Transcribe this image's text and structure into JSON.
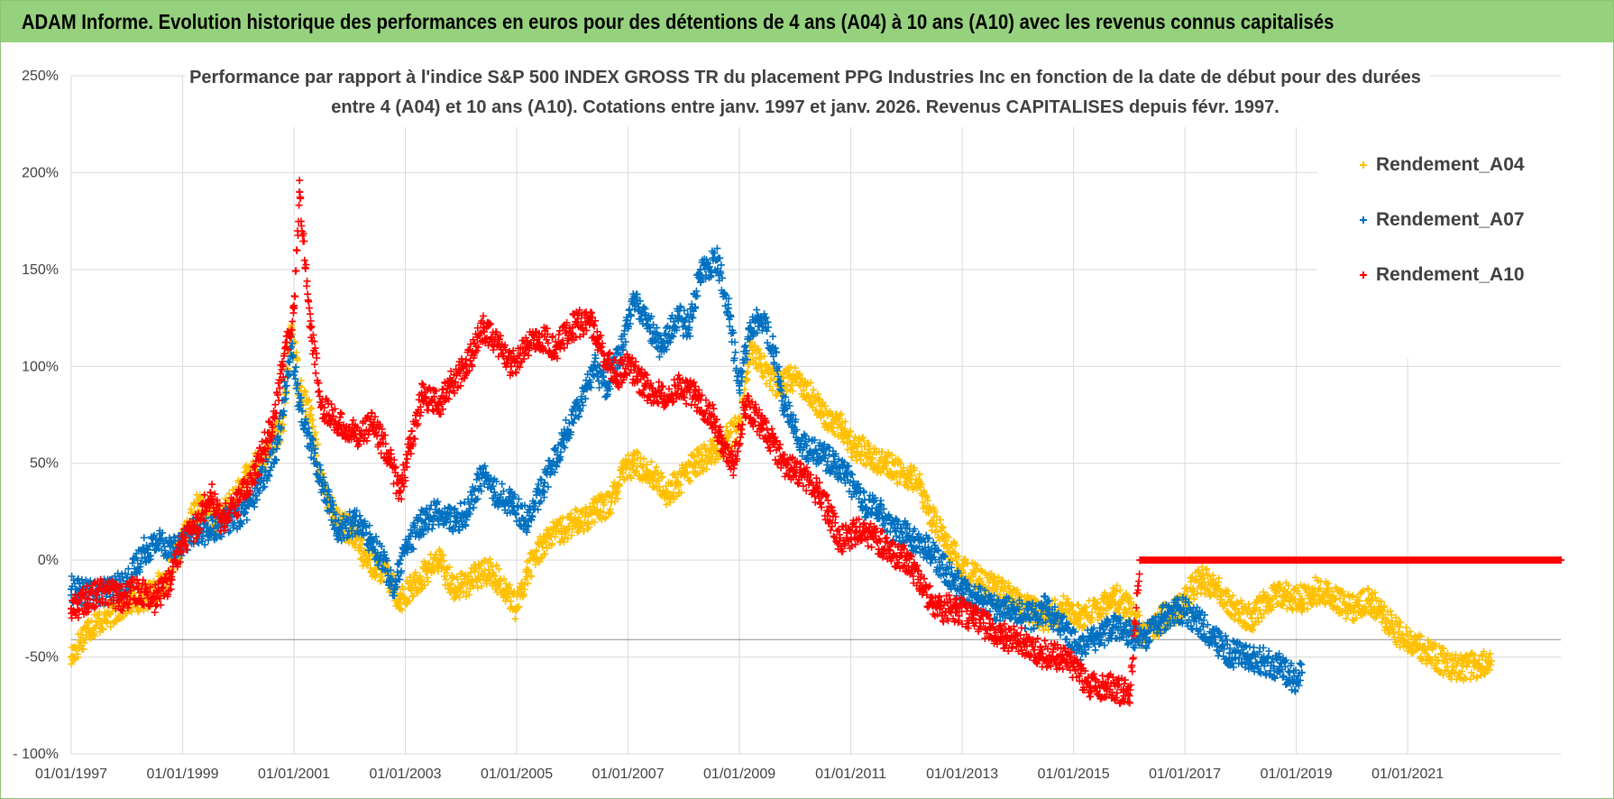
{
  "banner": {
    "title": "ADAM Informe. Evolution historique des performances en euros pour des détentions de 4 ans (A04) à 10 ans (A10) avec les revenus connus capitalisés"
  },
  "chart_data": {
    "type": "scatter",
    "title_line1": "Performance par rapport à l'indice S&P 500 INDEX GROSS TR  du placement PPG Industries Inc en fonction de la date de début pour des durées",
    "title_line2": "entre 4 (A04) et 10 ans (A10).  Cotations entre janv. 1997 et janv. 2026. Revenus CAPITALISES depuis févr. 1997.",
    "xlabel": "",
    "ylabel": "",
    "x_range": [
      1997.0,
      2023.75
    ],
    "ylim": [
      -100,
      250
    ],
    "y_ticks": [
      250,
      200,
      150,
      100,
      50,
      0,
      -50,
      -100
    ],
    "y_tick_labels": [
      "250%",
      "200%",
      "150%",
      "100%",
      "50%",
      "0%",
      "-50%",
      "- 100%"
    ],
    "x_ticks": [
      1997,
      1999,
      2001,
      2003,
      2005,
      2007,
      2009,
      2011,
      2013,
      2015,
      2017,
      2019,
      2021
    ],
    "x_tick_labels": [
      "01/01/1997",
      "01/01/1999",
      "01/01/2001",
      "01/01/2003",
      "01/01/2005",
      "01/01/2007",
      "01/01/2009",
      "01/01/2011",
      "01/01/2013",
      "01/01/2015",
      "01/01/2017",
      "01/01/2019",
      "01/01/2021"
    ],
    "grid": true,
    "legend_position": "top-right",
    "series": [
      {
        "name": "Rendement_A04",
        "color": "#ffc000",
        "points": [
          [
            1997.0,
            -50
          ],
          [
            1997.3,
            -35
          ],
          [
            1997.7,
            -28
          ],
          [
            1998.0,
            -22
          ],
          [
            1998.4,
            -18
          ],
          [
            1998.7,
            -10
          ],
          [
            1999.0,
            10
          ],
          [
            1999.3,
            30
          ],
          [
            1999.6,
            20
          ],
          [
            1999.9,
            30
          ],
          [
            2000.2,
            45
          ],
          [
            2000.5,
            55
          ],
          [
            2000.8,
            70
          ],
          [
            2000.95,
            120
          ],
          [
            2001.1,
            90
          ],
          [
            2001.3,
            75
          ],
          [
            2001.5,
            40
          ],
          [
            2001.8,
            20
          ],
          [
            2002.0,
            15
          ],
          [
            2002.3,
            0
          ],
          [
            2002.6,
            -5
          ],
          [
            2002.9,
            -20
          ],
          [
            2003.1,
            -15
          ],
          [
            2003.4,
            -5
          ],
          [
            2003.6,
            0
          ],
          [
            2003.9,
            -15
          ],
          [
            2004.2,
            -10
          ],
          [
            2004.5,
            -5
          ],
          [
            2004.8,
            -15
          ],
          [
            2005.0,
            -25
          ],
          [
            2005.2,
            -5
          ],
          [
            2005.5,
            10
          ],
          [
            2005.8,
            15
          ],
          [
            2006.1,
            20
          ],
          [
            2006.4,
            25
          ],
          [
            2006.7,
            30
          ],
          [
            2006.9,
            45
          ],
          [
            2007.1,
            50
          ],
          [
            2007.4,
            45
          ],
          [
            2007.7,
            35
          ],
          [
            2007.9,
            40
          ],
          [
            2008.2,
            50
          ],
          [
            2008.5,
            55
          ],
          [
            2008.7,
            60
          ],
          [
            2009.0,
            70
          ],
          [
            2009.2,
            110
          ],
          [
            2009.4,
            100
          ],
          [
            2009.7,
            90
          ],
          [
            2009.9,
            95
          ],
          [
            2010.2,
            90
          ],
          [
            2010.5,
            75
          ],
          [
            2010.8,
            70
          ],
          [
            2011.0,
            60
          ],
          [
            2011.3,
            55
          ],
          [
            2011.6,
            50
          ],
          [
            2011.9,
            45
          ],
          [
            2012.2,
            40
          ],
          [
            2012.4,
            25
          ],
          [
            2012.7,
            10
          ],
          [
            2013.0,
            -5
          ],
          [
            2013.3,
            -10
          ],
          [
            2013.6,
            -15
          ],
          [
            2013.9,
            -20
          ],
          [
            2014.2,
            -25
          ],
          [
            2014.5,
            -30
          ],
          [
            2014.8,
            -25
          ],
          [
            2015.1,
            -30
          ],
          [
            2015.4,
            -25
          ],
          [
            2015.7,
            -18
          ],
          [
            2016.0,
            -25
          ],
          [
            2016.3,
            -40
          ],
          [
            2016.6,
            -30
          ],
          [
            2016.9,
            -25
          ],
          [
            2017.1,
            -15
          ],
          [
            2017.3,
            -10
          ],
          [
            2017.6,
            -15
          ],
          [
            2017.9,
            -25
          ],
          [
            2018.2,
            -30
          ],
          [
            2018.5,
            -20
          ],
          [
            2018.8,
            -18
          ],
          [
            2019.1,
            -20
          ],
          [
            2019.4,
            -15
          ],
          [
            2019.7,
            -20
          ],
          [
            2020.0,
            -25
          ],
          [
            2020.3,
            -20
          ],
          [
            2020.6,
            -30
          ],
          [
            2020.9,
            -40
          ],
          [
            2021.2,
            -45
          ],
          [
            2021.5,
            -50
          ],
          [
            2021.8,
            -55
          ],
          [
            2022.2,
            -55
          ],
          [
            2022.5,
            -52
          ]
        ]
      },
      {
        "name": "Rendement_A07",
        "color": "#0070c0",
        "points": [
          [
            1997.0,
            -15
          ],
          [
            1997.4,
            -18
          ],
          [
            1997.7,
            -15
          ],
          [
            1998.0,
            -12
          ],
          [
            1998.3,
            5
          ],
          [
            1998.6,
            10
          ],
          [
            1998.9,
            5
          ],
          [
            1999.2,
            15
          ],
          [
            1999.5,
            15
          ],
          [
            1999.8,
            20
          ],
          [
            2000.1,
            25
          ],
          [
            2000.4,
            40
          ],
          [
            2000.7,
            60
          ],
          [
            2000.95,
            110
          ],
          [
            2001.1,
            80
          ],
          [
            2001.3,
            60
          ],
          [
            2001.5,
            40
          ],
          [
            2001.8,
            15
          ],
          [
            2002.1,
            20
          ],
          [
            2002.4,
            10
          ],
          [
            2002.6,
            0
          ],
          [
            2002.8,
            -15
          ],
          [
            2003.0,
            5
          ],
          [
            2003.3,
            20
          ],
          [
            2003.6,
            25
          ],
          [
            2003.9,
            20
          ],
          [
            2004.1,
            25
          ],
          [
            2004.4,
            45
          ],
          [
            2004.6,
            35
          ],
          [
            2004.9,
            30
          ],
          [
            2005.2,
            20
          ],
          [
            2005.5,
            40
          ],
          [
            2005.8,
            60
          ],
          [
            2006.1,
            80
          ],
          [
            2006.4,
            100
          ],
          [
            2006.6,
            90
          ],
          [
            2006.9,
            110
          ],
          [
            2007.1,
            135
          ],
          [
            2007.4,
            120
          ],
          [
            2007.6,
            110
          ],
          [
            2007.9,
            125
          ],
          [
            2008.1,
            120
          ],
          [
            2008.3,
            150
          ],
          [
            2008.6,
            155
          ],
          [
            2008.8,
            130
          ],
          [
            2009.0,
            90
          ],
          [
            2009.2,
            120
          ],
          [
            2009.4,
            125
          ],
          [
            2009.6,
            110
          ],
          [
            2009.8,
            80
          ],
          [
            2010.1,
            60
          ],
          [
            2010.4,
            55
          ],
          [
            2010.7,
            50
          ],
          [
            2010.9,
            45
          ],
          [
            2011.2,
            30
          ],
          [
            2011.5,
            25
          ],
          [
            2011.8,
            15
          ],
          [
            2012.1,
            12
          ],
          [
            2012.4,
            5
          ],
          [
            2012.7,
            -5
          ],
          [
            2013.0,
            -15
          ],
          [
            2013.3,
            -20
          ],
          [
            2013.6,
            -25
          ],
          [
            2013.9,
            -25
          ],
          [
            2014.2,
            -30
          ],
          [
            2014.5,
            -25
          ],
          [
            2014.8,
            -35
          ],
          [
            2015.1,
            -45
          ],
          [
            2015.4,
            -40
          ],
          [
            2015.7,
            -35
          ],
          [
            2016.0,
            -38
          ],
          [
            2016.3,
            -40
          ],
          [
            2016.6,
            -30
          ],
          [
            2016.9,
            -25
          ],
          [
            2017.2,
            -30
          ],
          [
            2017.5,
            -40
          ],
          [
            2017.8,
            -48
          ],
          [
            2018.1,
            -50
          ],
          [
            2018.4,
            -52
          ],
          [
            2018.7,
            -55
          ],
          [
            2019.0,
            -62
          ],
          [
            2019.1,
            -58
          ]
        ]
      },
      {
        "name": "Rendement_A10",
        "color": "#ff0000",
        "points": [
          [
            1997.0,
            -25
          ],
          [
            1997.3,
            -20
          ],
          [
            1997.6,
            -15
          ],
          [
            1997.9,
            -20
          ],
          [
            1998.2,
            -15
          ],
          [
            1998.5,
            -20
          ],
          [
            1998.8,
            -10
          ],
          [
            1999.0,
            10
          ],
          [
            1999.2,
            15
          ],
          [
            1999.5,
            35
          ],
          [
            1999.7,
            20
          ],
          [
            2000.0,
            30
          ],
          [
            2000.3,
            45
          ],
          [
            2000.6,
            70
          ],
          [
            2000.8,
            100
          ],
          [
            2001.0,
            130
          ],
          [
            2001.1,
            190
          ],
          [
            2001.3,
            120
          ],
          [
            2001.5,
            80
          ],
          [
            2001.8,
            70
          ],
          [
            2002.1,
            65
          ],
          [
            2002.4,
            70
          ],
          [
            2002.7,
            55
          ],
          [
            2002.9,
            35
          ],
          [
            2003.1,
            60
          ],
          [
            2003.3,
            85
          ],
          [
            2003.6,
            80
          ],
          [
            2003.8,
            90
          ],
          [
            2004.1,
            100
          ],
          [
            2004.4,
            120
          ],
          [
            2004.7,
            110
          ],
          [
            2004.9,
            100
          ],
          [
            2005.2,
            110
          ],
          [
            2005.4,
            115
          ],
          [
            2005.7,
            110
          ],
          [
            2006.0,
            120
          ],
          [
            2006.3,
            125
          ],
          [
            2006.5,
            110
          ],
          [
            2006.8,
            95
          ],
          [
            2007.0,
            100
          ],
          [
            2007.3,
            90
          ],
          [
            2007.6,
            85
          ],
          [
            2007.9,
            90
          ],
          [
            2008.2,
            85
          ],
          [
            2008.5,
            75
          ],
          [
            2008.7,
            60
          ],
          [
            2008.9,
            50
          ],
          [
            2009.1,
            80
          ],
          [
            2009.4,
            70
          ],
          [
            2009.6,
            60
          ],
          [
            2009.8,
            50
          ],
          [
            2010.1,
            45
          ],
          [
            2010.4,
            35
          ],
          [
            2010.6,
            25
          ],
          [
            2010.8,
            10
          ],
          [
            2011.1,
            15
          ],
          [
            2011.4,
            12
          ],
          [
            2011.7,
            5
          ],
          [
            2012.0,
            0
          ],
          [
            2012.3,
            -15
          ],
          [
            2012.6,
            -25
          ],
          [
            2012.9,
            -25
          ],
          [
            2013.2,
            -30
          ],
          [
            2013.5,
            -35
          ],
          [
            2013.8,
            -40
          ],
          [
            2014.1,
            -42
          ],
          [
            2014.4,
            -48
          ],
          [
            2014.7,
            -50
          ],
          [
            2015.0,
            -55
          ],
          [
            2015.3,
            -65
          ],
          [
            2015.6,
            -65
          ],
          [
            2015.9,
            -68
          ],
          [
            2016.0,
            -70
          ],
          [
            2016.2,
            0
          ],
          [
            2023.75,
            0
          ]
        ]
      }
    ]
  }
}
